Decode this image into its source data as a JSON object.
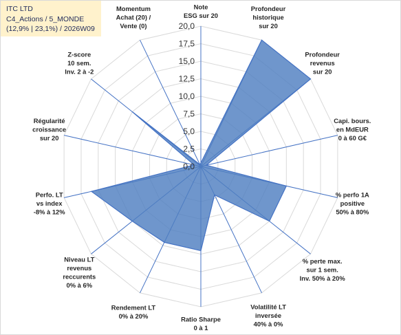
{
  "title": {
    "line1": "ITC LTD",
    "line2": "C4_Actions / 5_MONDE",
    "line3": "(12,9% | 23,1%) / 2026W09"
  },
  "chart_data": {
    "type": "radar",
    "title": "",
    "rmin": 0,
    "rmax": 20,
    "tick_step": 2.5,
    "tick_labels": [
      "0,0",
      "2,5",
      "5,0",
      "7,5",
      "10,0",
      "12,5",
      "15,0",
      "17,5",
      "20,0"
    ],
    "grid": true,
    "fill_color": "#4f7fc1",
    "stroke_color": "#4472c4",
    "axes": [
      {
        "label": "Note\nESG sur 20",
        "value": 0.5
      },
      {
        "label": "Profondeur\nhistorique\nsur 20",
        "value": 20
      },
      {
        "label": "Profondeur\nrevenus\nsur 20",
        "value": 20
      },
      {
        "label": "Capi. bours.\nen MdEUR\n0 à 60 G€",
        "value": 0.8
      },
      {
        "label": "% perfo 1A\npositive\n50% à 80%",
        "value": 12.5
      },
      {
        "label": "% perte max.\nsur 1 sem.\nInv. 50% à 20%",
        "value": 12.5
      },
      {
        "label": "Volatilité LT\ninversée\n40% à 0%",
        "value": 4.5
      },
      {
        "label": "Ratio Sharpe\n0 à 1",
        "value": 12
      },
      {
        "label": "Rendement LT\n0% à 20%",
        "value": 12
      },
      {
        "label": "Niveau LT\nrevenus\nreccurents\n0% à 6%",
        "value": 12.5
      },
      {
        "label": "Perfo. LT\nvs index\n-8% à 12%",
        "value": 16
      },
      {
        "label": "Régularité\ncroissance\nsur 20",
        "value": 1
      },
      {
        "label": "Z-score\n10 sem.\nInv. 2 à -2",
        "value": 12.5
      },
      {
        "label": "Momentum\nAchat (20) /\nVente (0)",
        "value": 0.3
      }
    ]
  }
}
